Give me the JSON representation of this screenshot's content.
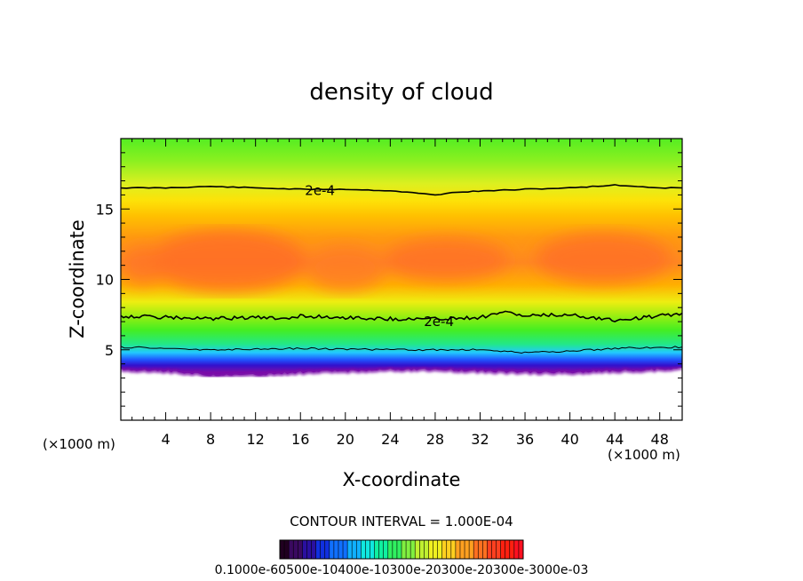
{
  "chart_data": {
    "type": "heatmap",
    "title": "density of cloud",
    "xlabel": "X-coordinate",
    "ylabel": "Z-coordinate",
    "x_unit": "(×1000 m)",
    "y_unit": "(×1000 m)",
    "xlim": [
      0,
      50
    ],
    "ylim": [
      0,
      20
    ],
    "x_ticks": [
      4,
      8,
      12,
      16,
      20,
      24,
      28,
      32,
      36,
      40,
      44,
      48
    ],
    "y_ticks": [
      5,
      10,
      15
    ],
    "contour_interval_text": "CONTOUR INTERVAL = 1.000E-04",
    "colorbar_labels": "0.1000e-60500e-10400e-10300e-20300e-20300e-3000e-03",
    "contour_labels": [
      {
        "text": "2e-4",
        "x": 16.4,
        "z": 16.3
      },
      {
        "text": "2e-4",
        "x": 27.0,
        "z": 7.0
      }
    ],
    "upper_contour": [
      {
        "x": 0,
        "z": 16.5
      },
      {
        "x": 4,
        "z": 16.5
      },
      {
        "x": 8,
        "z": 16.6
      },
      {
        "x": 12,
        "z": 16.5
      },
      {
        "x": 16,
        "z": 16.4
      },
      {
        "x": 20,
        "z": 16.4
      },
      {
        "x": 24,
        "z": 16.3
      },
      {
        "x": 28,
        "z": 16.0
      },
      {
        "x": 30,
        "z": 16.2
      },
      {
        "x": 36,
        "z": 16.4
      },
      {
        "x": 40,
        "z": 16.5
      },
      {
        "x": 44,
        "z": 16.7
      },
      {
        "x": 46,
        "z": 16.6
      },
      {
        "x": 48,
        "z": 16.5
      },
      {
        "x": 50,
        "z": 16.5
      }
    ],
    "lower_contour": [
      {
        "x": 0,
        "z": 7.4
      },
      {
        "x": 4,
        "z": 7.3
      },
      {
        "x": 8,
        "z": 7.2
      },
      {
        "x": 12,
        "z": 7.3
      },
      {
        "x": 14,
        "z": 7.2
      },
      {
        "x": 16,
        "z": 7.4
      },
      {
        "x": 20,
        "z": 7.3
      },
      {
        "x": 24,
        "z": 7.2
      },
      {
        "x": 28,
        "z": 7.2
      },
      {
        "x": 32,
        "z": 7.3
      },
      {
        "x": 34,
        "z": 7.7
      },
      {
        "x": 36,
        "z": 7.4
      },
      {
        "x": 40,
        "z": 7.5
      },
      {
        "x": 44,
        "z": 7.1
      },
      {
        "x": 48,
        "z": 7.4
      },
      {
        "x": 50,
        "z": 7.6
      }
    ],
    "cloud_base_contour": [
      {
        "x": 0,
        "z": 5.2
      },
      {
        "x": 8,
        "z": 5.0
      },
      {
        "x": 16,
        "z": 5.1
      },
      {
        "x": 24,
        "z": 5.0
      },
      {
        "x": 32,
        "z": 5.0
      },
      {
        "x": 36,
        "z": 4.8
      },
      {
        "x": 40,
        "z": 4.9
      },
      {
        "x": 44,
        "z": 5.1
      },
      {
        "x": 50,
        "z": 5.2
      }
    ],
    "cloud_base": [
      {
        "x": 0,
        "z": 3.6
      },
      {
        "x": 4,
        "z": 3.5
      },
      {
        "x": 8,
        "z": 3.2
      },
      {
        "x": 12,
        "z": 3.2
      },
      {
        "x": 16,
        "z": 3.4
      },
      {
        "x": 20,
        "z": 3.5
      },
      {
        "x": 24,
        "z": 3.6
      },
      {
        "x": 28,
        "z": 3.6
      },
      {
        "x": 32,
        "z": 3.5
      },
      {
        "x": 36,
        "z": 3.4
      },
      {
        "x": 40,
        "z": 3.4
      },
      {
        "x": 44,
        "z": 3.5
      },
      {
        "x": 48,
        "z": 3.6
      },
      {
        "x": 50,
        "z": 3.7
      }
    ],
    "vertical_profile": [
      {
        "z": 3.4,
        "color": "#7a0ea8"
      },
      {
        "z": 3.9,
        "color": "#3311cc"
      },
      {
        "z": 4.3,
        "color": "#1f55ff"
      },
      {
        "z": 4.8,
        "color": "#22c8ff"
      },
      {
        "z": 5.4,
        "color": "#22e888"
      },
      {
        "z": 6.4,
        "color": "#44ee22"
      },
      {
        "z": 7.4,
        "color": "#99ee11"
      },
      {
        "z": 8.4,
        "color": "#eeee11"
      },
      {
        "z": 9.6,
        "color": "#ffb000"
      },
      {
        "z": 11.2,
        "color": "#ff8820"
      },
      {
        "z": 13.0,
        "color": "#ff9a10"
      },
      {
        "z": 14.5,
        "color": "#ffc000"
      },
      {
        "z": 15.6,
        "color": "#fde208"
      },
      {
        "z": 16.8,
        "color": "#dcf020"
      },
      {
        "z": 18.4,
        "color": "#8cf020"
      },
      {
        "z": 20.0,
        "color": "#55ee22"
      }
    ],
    "dense_cores": [
      {
        "x": 9.5,
        "z": 11.3,
        "rx": 7.0,
        "rz": 2.2,
        "color": "#ff6a28"
      },
      {
        "x": 20.0,
        "z": 10.8,
        "rx": 3.5,
        "rz": 1.6,
        "color": "#ff7a24"
      },
      {
        "x": 29.0,
        "z": 11.4,
        "rx": 5.5,
        "rz": 1.5,
        "color": "#ff7026"
      },
      {
        "x": 43.0,
        "z": 11.5,
        "rx": 6.0,
        "rz": 1.8,
        "color": "#ff6e28"
      },
      {
        "x": 2.0,
        "z": 11.0,
        "rx": 2.0,
        "rz": 1.4,
        "color": "#ff7424"
      }
    ],
    "colorbar_colors": [
      "#200020",
      "#3a0a60",
      "#2a10a0",
      "#1030e0",
      "#1070ff",
      "#10b0ff",
      "#10e8e0",
      "#10f0a0",
      "#30f060",
      "#80f040",
      "#c0f030",
      "#f0f020",
      "#ffd020",
      "#ffa020",
      "#ff7020",
      "#ff4020",
      "#ff2010",
      "#ff1020"
    ]
  }
}
